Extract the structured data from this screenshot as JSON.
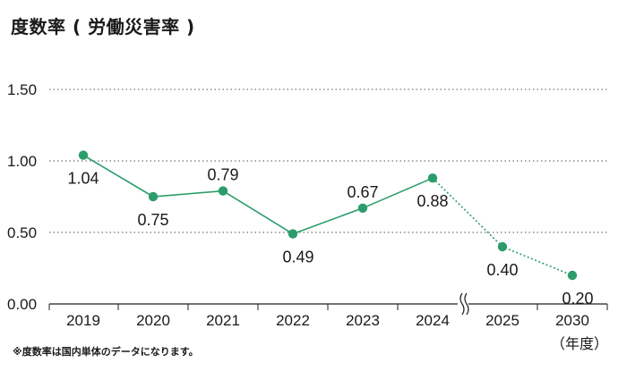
{
  "page_title": "度数率 ( 労働災害率 )",
  "footnote": "※度数率は国内単体のデータになります。",
  "colors": {
    "series": "#2a9d6b",
    "grid": "#555555",
    "axis": "#222222"
  },
  "chart_data": {
    "type": "line",
    "title": "度数率 ( 労働災害率 )",
    "x_unit_label": "（年度）",
    "categories": [
      "2019",
      "2020",
      "2021",
      "2022",
      "2023",
      "2024",
      "2025",
      "2030"
    ],
    "values": [
      1.04,
      0.75,
      0.79,
      0.49,
      0.67,
      0.88,
      0.4,
      0.2
    ],
    "value_labels": [
      "1.04",
      "0.75",
      "0.79",
      "0.49",
      "0.67",
      "0.88",
      "0.40",
      "0.20"
    ],
    "actual_range": [
      "2019",
      "2024"
    ],
    "target_range": [
      "2024",
      "2030"
    ],
    "axis_break_between": [
      "2024",
      "2025"
    ],
    "y_ticks": [
      "0.00",
      "0.50",
      "1.00",
      "1.50"
    ],
    "ylim": [
      0,
      1.5
    ],
    "grid": "dotted horizontal",
    "legend": "none"
  }
}
